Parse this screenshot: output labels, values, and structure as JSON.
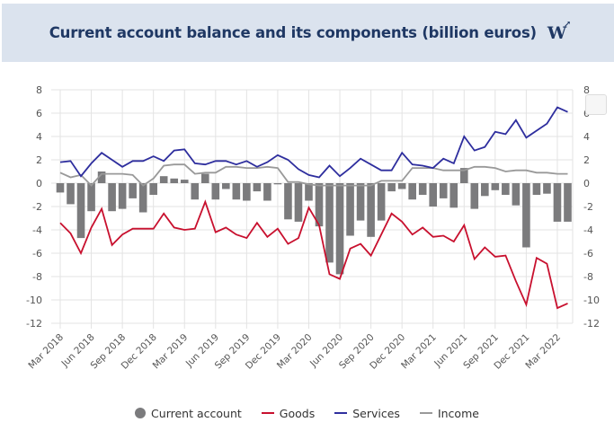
{
  "header": {
    "title": "Current account balance and its components (billion euros)",
    "logo_text": "W",
    "logo_arrow": "↗"
  },
  "legend": {
    "items": [
      {
        "label": "Current account",
        "color": "#7b7b7d",
        "symbol": "dot"
      },
      {
        "label": "Goods",
        "color": "#c8102e",
        "symbol": "line"
      },
      {
        "label": "Services",
        "color": "#2e2e9e",
        "symbol": "line"
      },
      {
        "label": "Income",
        "color": "#999999",
        "symbol": "line"
      }
    ]
  },
  "chart_data": {
    "type": "bar+line",
    "title": "Current account balance and its components (billion euros)",
    "xlabel": "",
    "ylabel": "",
    "ylim": [
      -12,
      8
    ],
    "yticks": [
      8,
      6,
      4,
      2,
      0,
      -2,
      -4,
      -6,
      -8,
      -10,
      -12
    ],
    "ytick_labels_left": [
      "8",
      "6",
      "4",
      "2",
      "0",
      "-2",
      "-4",
      "-6",
      "-8",
      "-10",
      "-12"
    ],
    "ytick_labels_right": [
      "8",
      "6",
      "4",
      "2",
      "0",
      "-2",
      "-4",
      "-6",
      "-8",
      "-10",
      "-12"
    ],
    "grid": true,
    "legend_position": "bottom",
    "x_tick_labels": [
      "Mar 2018",
      "Jun 2018",
      "Sep 2018",
      "Dec 2018",
      "Mar 2019",
      "Jun 2019",
      "Sep 2019",
      "Dec 2019",
      "Mar 2020",
      "Jun 2020",
      "Sep 2020",
      "Dec 2020",
      "Mar 2021",
      "Jun 2021",
      "Sep 2021",
      "Dec 2021",
      "Mar 2022"
    ],
    "x_tick_every_months": 3,
    "categories": [
      "Mar 2018",
      "Apr 2018",
      "May 2018",
      "Jun 2018",
      "Jul 2018",
      "Aug 2018",
      "Sep 2018",
      "Oct 2018",
      "Nov 2018",
      "Dec 2018",
      "Jan 2019",
      "Feb 2019",
      "Mar 2019",
      "Apr 2019",
      "May 2019",
      "Jun 2019",
      "Jul 2019",
      "Aug 2019",
      "Sep 2019",
      "Oct 2019",
      "Nov 2019",
      "Dec 2019",
      "Jan 2020",
      "Feb 2020",
      "Mar 2020",
      "Apr 2020",
      "May 2020",
      "Jun 2020",
      "Jul 2020",
      "Aug 2020",
      "Sep 2020",
      "Oct 2020",
      "Nov 2020",
      "Dec 2020",
      "Jan 2021",
      "Feb 2021",
      "Mar 2021",
      "Apr 2021",
      "May 2021",
      "Jun 2021",
      "Jul 2021",
      "Aug 2021",
      "Sep 2021",
      "Oct 2021",
      "Nov 2021",
      "Dec 2021",
      "Jan 2022",
      "Feb 2022",
      "Mar 2022",
      "Apr 2022"
    ],
    "series": [
      {
        "name": "Current account",
        "kind": "bar",
        "color": "#7b7b7d",
        "values": [
          -0.8,
          -1.8,
          -4.7,
          -2.4,
          1.0,
          -2.4,
          -2.2,
          -1.3,
          -2.5,
          -1.0,
          0.6,
          0.4,
          0.3,
          -1.4,
          0.8,
          -1.4,
          -0.5,
          -1.4,
          -1.5,
          -0.7,
          -1.5,
          -0.1,
          -3.1,
          -3.3,
          -1.5,
          -3.7,
          -6.8,
          -7.8,
          -4.5,
          -3.2,
          -4.6,
          -3.2,
          -0.7,
          -0.5,
          -1.4,
          -1.0,
          -2.0,
          -1.3,
          -2.1,
          1.3,
          -2.2,
          -1.1,
          -0.6,
          -1.0,
          -1.9,
          -5.5,
          -1.0,
          -0.9,
          -3.3,
          -3.3
        ]
      },
      {
        "name": "Goods",
        "kind": "line",
        "color": "#c8102e",
        "values": [
          -3.4,
          -4.3,
          -6.0,
          -3.8,
          -2.2,
          -5.3,
          -4.4,
          -3.9,
          -3.9,
          -3.9,
          -2.6,
          -3.8,
          -4.0,
          -3.9,
          -1.6,
          -4.2,
          -3.8,
          -4.4,
          -4.7,
          -3.4,
          -4.6,
          -3.9,
          -5.2,
          -4.7,
          -2.1,
          -3.6,
          -7.8,
          -8.2,
          -5.6,
          -5.2,
          -6.2,
          -4.4,
          -2.6,
          -3.3,
          -4.4,
          -3.8,
          -4.6,
          -4.5,
          -5.0,
          -3.6,
          -6.5,
          -5.5,
          -6.3,
          -6.2,
          -8.4,
          -10.4,
          -6.4,
          -6.9,
          -10.7,
          -10.3
        ]
      },
      {
        "name": "Services",
        "kind": "line",
        "color": "#2e2e9e",
        "values": [
          1.8,
          1.9,
          0.6,
          1.7,
          2.6,
          2.0,
          1.4,
          1.9,
          1.9,
          2.3,
          1.9,
          2.8,
          2.9,
          1.7,
          1.6,
          1.9,
          1.9,
          1.6,
          1.9,
          1.4,
          1.8,
          2.4,
          2.0,
          1.2,
          0.7,
          0.5,
          1.5,
          0.6,
          1.3,
          2.1,
          1.6,
          1.1,
          1.1,
          2.6,
          1.6,
          1.5,
          1.3,
          2.1,
          1.7,
          4.0,
          2.8,
          3.1,
          4.4,
          4.2,
          5.4,
          3.9,
          4.5,
          5.1,
          6.5,
          6.1
        ]
      },
      {
        "name": "Income",
        "kind": "line",
        "color": "#999999",
        "values": [
          0.9,
          0.5,
          0.7,
          -0.2,
          0.8,
          0.8,
          0.8,
          0.7,
          -0.2,
          0.4,
          1.5,
          1.6,
          1.6,
          0.8,
          0.9,
          0.9,
          1.4,
          1.4,
          1.3,
          1.3,
          1.4,
          1.3,
          0.1,
          0.1,
          -0.1,
          -0.2,
          -0.2,
          -0.2,
          -0.2,
          -0.2,
          -0.2,
          0.2,
          0.2,
          0.2,
          1.3,
          1.3,
          1.3,
          1.1,
          1.1,
          1.1,
          1.4,
          1.4,
          1.3,
          1.0,
          1.1,
          1.1,
          0.9,
          0.9,
          0.8,
          0.8
        ]
      }
    ]
  }
}
